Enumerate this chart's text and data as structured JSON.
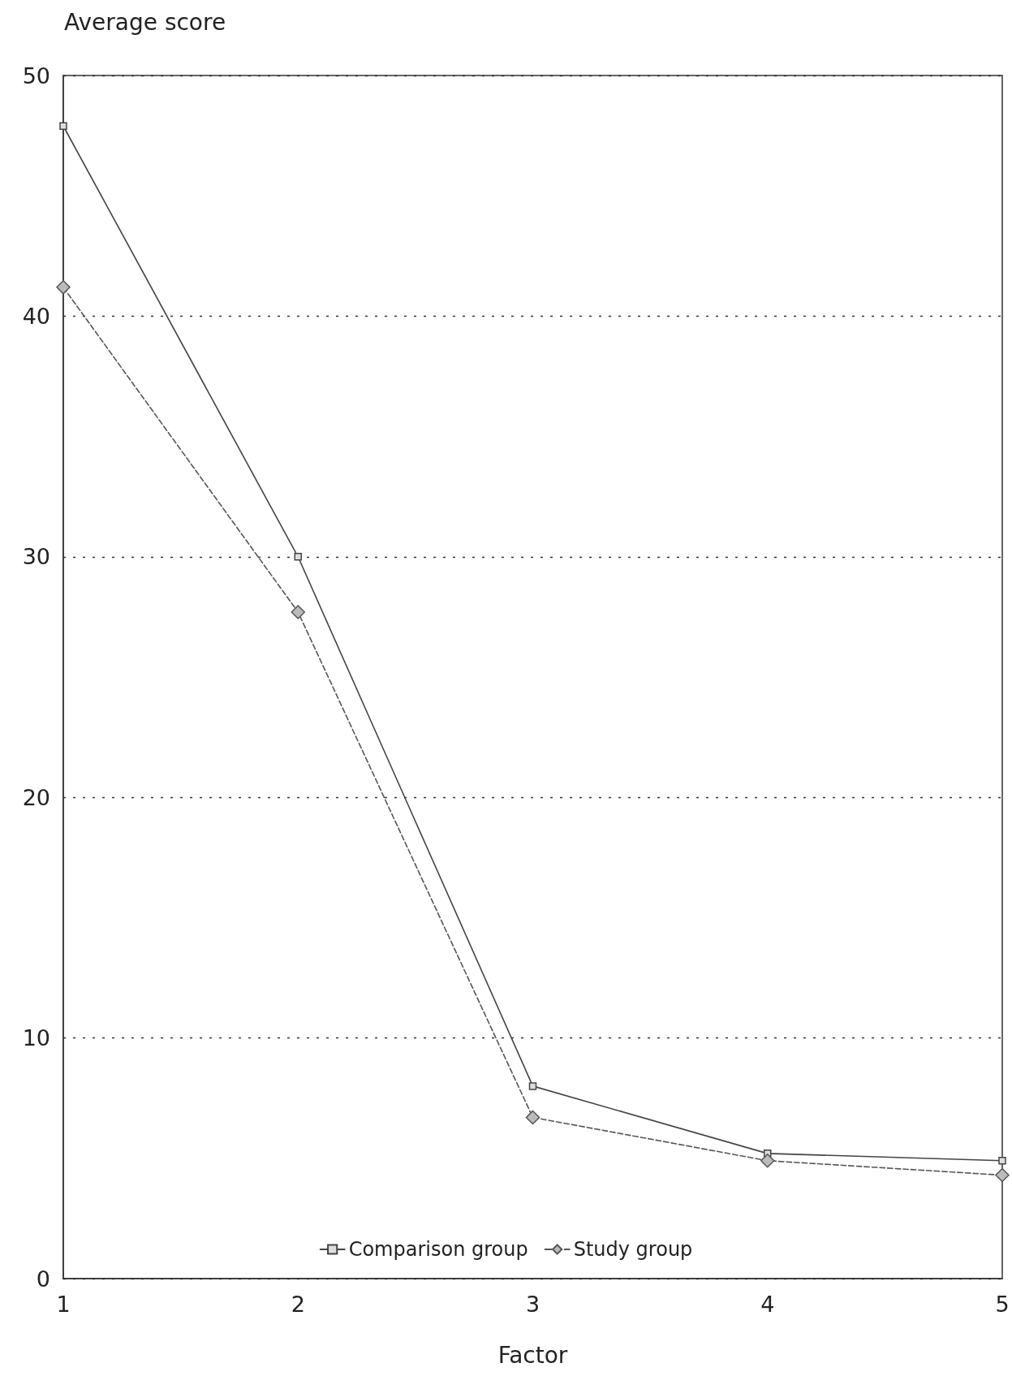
{
  "chart_data": {
    "type": "line",
    "xlabel": "Factor",
    "ylabel": "Average score",
    "x": [
      1,
      2,
      3,
      4,
      5
    ],
    "xlim": [
      1,
      5
    ],
    "xticks": [
      1,
      2,
      3,
      4,
      5
    ],
    "ylim": [
      0,
      50
    ],
    "yticks": [
      0,
      10,
      20,
      30,
      40,
      50
    ],
    "series": [
      {
        "name": "Comparison group",
        "color": "#444444",
        "values": [
          47.9,
          30.0,
          8.0,
          5.2,
          4.9
        ],
        "marker": "square",
        "line_style": "solid"
      },
      {
        "name": "Study group",
        "color": "#555555",
        "values": [
          41.2,
          27.7,
          6.7,
          4.9,
          4.3
        ],
        "marker": "diamond",
        "line_style": "dashed"
      }
    ],
    "grid": "y",
    "legend": "bottom"
  }
}
